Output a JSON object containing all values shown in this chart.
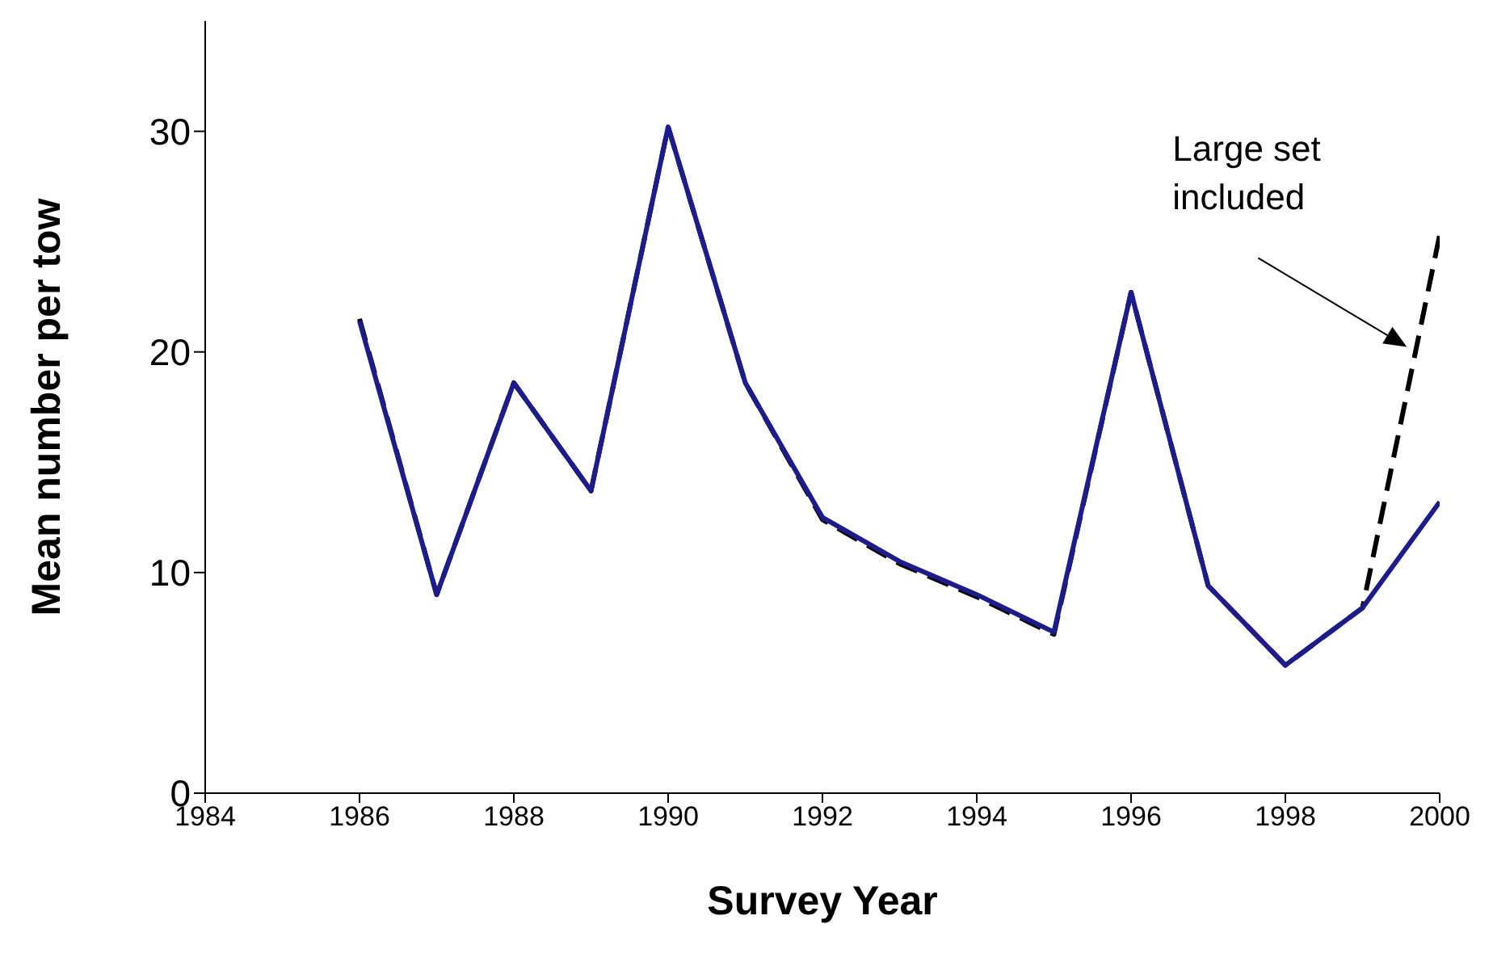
{
  "chart_data": {
    "type": "line",
    "xlabel": "Survey Year",
    "ylabel": "Mean number per tow",
    "x": [
      1986,
      1987,
      1988,
      1989,
      1990,
      1991,
      1992,
      1993,
      1994,
      1995,
      1996,
      1997,
      1998,
      1999,
      2000
    ],
    "series": [
      {
        "color": "#000000",
        "line_style": "dashed",
        "values": [
          21.5,
          9.0,
          18.6,
          13.7,
          30.2,
          18.6,
          12.4,
          10.4,
          8.9,
          7.2,
          22.7,
          9.4,
          5.8,
          8.4,
          25.3
        ]
      },
      {
        "color": "#1c1c8c",
        "line_style": "solid",
        "values": [
          21.4,
          9.0,
          18.6,
          13.7,
          30.2,
          18.6,
          12.5,
          10.5,
          9.0,
          7.3,
          22.7,
          9.4,
          5.8,
          8.4,
          13.2
        ]
      }
    ],
    "xlim": [
      1984,
      2000
    ],
    "xticks": [
      1984,
      1986,
      1988,
      1990,
      1992,
      1994,
      1996,
      1998,
      2000
    ],
    "ylim": [
      0,
      35
    ],
    "yticks": [
      0,
      10,
      20,
      30
    ],
    "grid": false,
    "legend": false,
    "marker": "none",
    "annotations": [
      "Large set\nincluded"
    ]
  }
}
